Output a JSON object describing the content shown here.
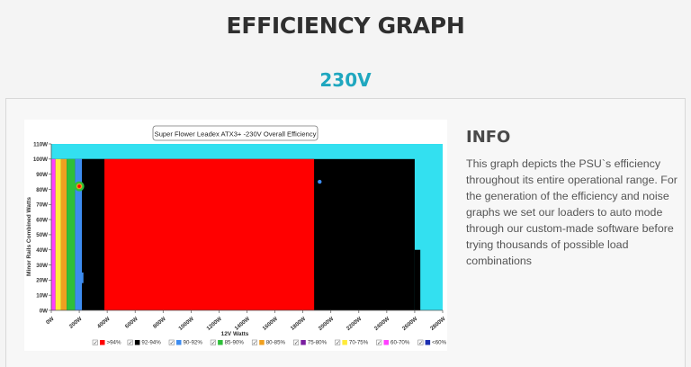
{
  "page": {
    "heading": "EFFICIENCY GRAPH",
    "subheading": "230V"
  },
  "info": {
    "title": "INFO",
    "text": "This graph depicts the PSU`s efficiency throughout its entire operational range. For the generation of the efficiency and noise graphs we set our loaders to auto mode through our custom-made software before trying thousands of possible load combinations"
  },
  "chart_data": {
    "type": "heatmap",
    "title": "Super Flower Leadex ATX3+ -230V Overall Efficiency",
    "xlabel": "12V Watts",
    "ylabel": "Minor Rails Combined Watts",
    "xlim": [
      0,
      2800
    ],
    "ylim": [
      0,
      110
    ],
    "x_ticks": [
      "0W",
      "200W",
      "400W",
      "600W",
      "800W",
      "1000W",
      "1200W",
      "1400W",
      "1600W",
      "1800W",
      "2000W",
      "2200W",
      "2400W",
      "2600W",
      "2800W"
    ],
    "y_ticks": [
      "0W",
      "10W",
      "20W",
      "30W",
      "40W",
      "50W",
      "60W",
      "70W",
      "80W",
      "90W",
      "100W",
      "110W"
    ],
    "grid": false,
    "legend_position": "bottom",
    "legend": [
      {
        "label": ">94%",
        "color": "#ff0000"
      },
      {
        "label": "92-94%",
        "color": "#000000"
      },
      {
        "label": "90-92%",
        "color": "#3d8cf0"
      },
      {
        "label": "85-90%",
        "color": "#2fbf3a"
      },
      {
        "label": "80-85%",
        "color": "#f0a020"
      },
      {
        "label": "75-80%",
        "color": "#7a1fa0"
      },
      {
        "label": "70-75%",
        "color": "#ffeb3b"
      },
      {
        "label": "60-70%",
        "color": "#ff40ff"
      },
      {
        "label": "<60%",
        "color": "#1c2fb0"
      }
    ],
    "background_color": "#33e0f0",
    "regions": [
      {
        "band": "92-94%",
        "x": [
          0,
          2600
        ],
        "y": [
          0,
          100
        ]
      },
      {
        "band": ">94%",
        "x": [
          380,
          1880
        ],
        "y": [
          0,
          100
        ]
      },
      {
        "band": "92-94%",
        "x": [
          2600,
          2640
        ],
        "y": [
          0,
          40
        ]
      }
    ]
  }
}
